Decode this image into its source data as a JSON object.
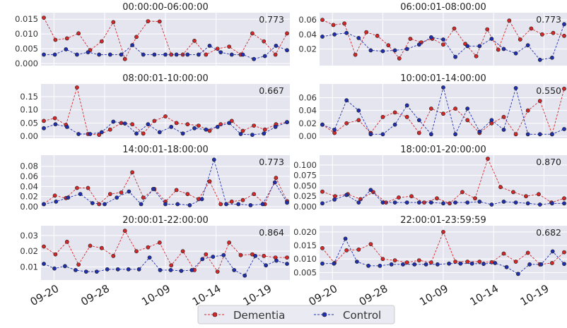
{
  "colors": {
    "dementia": "#d62728",
    "control": "#1f2fb0",
    "panel_bg": "#e5e5f0",
    "grid": "#ffffff"
  },
  "legend": {
    "dementia": "Dementia",
    "control": "Control"
  },
  "x_tick_labels": [
    "09-20",
    "09-28",
    "10-09",
    "10-14",
    "10-19"
  ],
  "chart_data": [
    {
      "type": "line",
      "title": "00:00:00-06:00:00",
      "annotation": "0.773",
      "ylim": [
        0,
        0.016
      ],
      "yticks": [
        "0.000",
        "0.005",
        "0.010",
        "0.015"
      ],
      "series": [
        {
          "name": "Dementia",
          "values": [
            0.0155,
            0.008,
            0.0085,
            0.0102,
            0.0045,
            0.0075,
            0.014,
            0.0015,
            0.009,
            0.0143,
            0.0142,
            0.003,
            0.003,
            0.0077,
            0.003,
            0.005,
            0.0057,
            0.003,
            0.0102,
            0.0075,
            0.003,
            0.0102
          ]
        },
        {
          "name": "Control",
          "values": [
            0.003,
            0.003,
            0.0048,
            0.003,
            0.0038,
            0.003,
            0.003,
            0.003,
            0.0062,
            0.003,
            0.003,
            0.003,
            0.003,
            0.003,
            0.003,
            0.006,
            0.0038,
            0.003,
            0.003,
            0.0015,
            0.0025,
            0.006,
            0.0045
          ]
        }
      ]
    },
    {
      "type": "line",
      "title": "06:00:01-08:00:00",
      "annotation": "0.773",
      "ylim": [
        0,
        0.065
      ],
      "yticks": [
        "0.02",
        "0.04",
        "0.06"
      ],
      "series": [
        {
          "name": "Dementia",
          "values": [
            0.06,
            0.053,
            0.055,
            0.012,
            0.043,
            0.038,
            0.025,
            0.007,
            0.034,
            0.029,
            0.034,
            0.026,
            0.048,
            0.027,
            0.01,
            0.047,
            0.019,
            0.059,
            0.033,
            0.048,
            0.04,
            0.042,
            0.038
          ]
        },
        {
          "name": "Control",
          "values": [
            0.037,
            0.04,
            0.042,
            0.035,
            0.018,
            0.017,
            0.018,
            0.02,
            0.026,
            0.036,
            0.033,
            0.009,
            0.024,
            0.024,
            0.034,
            0.02,
            0.014,
            0.025,
            0.005,
            0.008,
            0.054
          ]
        }
      ]
    },
    {
      "type": "line",
      "title": "08:00:01-10:00:00",
      "annotation": "0.667",
      "ylim": [
        0,
        0.185
      ],
      "yticks": [
        "0.00",
        "0.05",
        "0.10",
        "0.15"
      ],
      "series": [
        {
          "name": "Dementia",
          "values": [
            0.058,
            0.068,
            0.043,
            0.185,
            0.008,
            0.005,
            0.025,
            0.05,
            0.045,
            0.01,
            0.058,
            0.075,
            0.05,
            0.045,
            0.04,
            0.02,
            0.045,
            0.058,
            0.02,
            0.04,
            0.025,
            0.045,
            0.053
          ]
        },
        {
          "name": "Control",
          "values": [
            0.03,
            0.045,
            0.035,
            0.008,
            0.008,
            0.015,
            0.055,
            0.048,
            0.01,
            0.045,
            0.015,
            0.035,
            0.01,
            0.03,
            0.025,
            0.035,
            0.05,
            0.008,
            0.005,
            0.01,
            0.035,
            0.053
          ]
        }
      ]
    },
    {
      "type": "line",
      "title": "10:00:01-14:00:00",
      "annotation": "0.550",
      "ylim": [
        0,
        0.076
      ],
      "yticks": [
        "0.00",
        "0.02",
        "0.04",
        "0.06"
      ],
      "series": [
        {
          "name": "Dementia",
          "values": [
            0.018,
            0.005,
            0.02,
            0.025,
            0.005,
            0.03,
            0.037,
            0.03,
            0.005,
            0.043,
            0.035,
            0.043,
            0.025,
            0.005,
            0.02,
            0.03,
            0.003,
            0.04,
            0.055,
            0.003,
            0.074
          ]
        },
        {
          "name": "Control",
          "values": [
            0.018,
            0.01,
            0.056,
            0.04,
            0.003,
            0.003,
            0.018,
            0.048,
            0.025,
            0.003,
            0.076,
            0.003,
            0.043,
            0.007,
            0.025,
            0.01,
            0.075,
            0.003,
            0.003,
            0.003,
            0.011
          ]
        }
      ]
    },
    {
      "type": "line",
      "title": "14:00:01-18:00:00",
      "annotation": "0.773",
      "ylim": [
        0,
        0.095
      ],
      "yticks": [
        "0.00",
        "0.02",
        "0.04",
        "0.06",
        "0.08"
      ],
      "series": [
        {
          "name": "Dementia",
          "values": [
            0.005,
            0.022,
            0.017,
            0.037,
            0.037,
            0.005,
            0.025,
            0.028,
            0.068,
            0.018,
            0.035,
            0.01,
            0.033,
            0.025,
            0.015,
            0.05,
            0.005,
            0.01,
            0.013,
            0.025,
            0.005,
            0.057,
            0.011
          ]
        },
        {
          "name": "Control",
          "values": [
            0.005,
            0.01,
            0.018,
            0.025,
            0.007,
            0.005,
            0.018,
            0.03,
            0.005,
            0.035,
            0.005,
            0.005,
            0.003,
            0.015,
            0.093,
            0.005,
            0.005,
            0.003,
            0.005,
            0.048,
            0.008
          ]
        }
      ]
    },
    {
      "type": "line",
      "title": "18:00:01-20:00:00",
      "annotation": "0.870",
      "ylim": [
        0,
        0.115
      ],
      "yticks": [
        "0.000",
        "0.025",
        "0.050",
        "0.075",
        "0.100"
      ],
      "series": [
        {
          "name": "Dementia",
          "values": [
            0.036,
            0.025,
            0.03,
            0.018,
            0.035,
            0.01,
            0.022,
            0.025,
            0.01,
            0.02,
            0.008,
            0.035,
            0.02,
            0.115,
            0.047,
            0.035,
            0.025,
            0.03,
            0.01,
            0.02
          ]
        },
        {
          "name": "Control",
          "values": [
            0.008,
            0.017,
            0.028,
            0.01,
            0.04,
            0.01,
            0.01,
            0.01,
            0.01,
            0.01,
            0.008,
            0.01,
            0.01,
            0.012,
            0.005,
            0.012,
            0.01,
            0.008,
            0.005,
            0.008,
            0.008
          ]
        }
      ]
    },
    {
      "type": "line",
      "title": "20:00:01-22:00:00",
      "annotation": "0.864",
      "ylim": [
        0.003,
        0.034
      ],
      "yticks": [
        "0.01",
        "0.02",
        "0.03"
      ],
      "series": [
        {
          "name": "Dementia",
          "values": [
            0.023,
            0.018,
            0.026,
            0.0115,
            0.0235,
            0.022,
            0.017,
            0.033,
            0.02,
            0.0225,
            0.0255,
            0.011,
            0.02,
            0.008,
            0.018,
            0.007,
            0.0255,
            0.0175,
            0.018,
            0.017,
            0.016,
            0.016
          ]
        },
        {
          "name": "Control",
          "values": [
            0.012,
            0.009,
            0.0105,
            0.008,
            0.007,
            0.007,
            0.0085,
            0.0085,
            0.0085,
            0.0085,
            0.016,
            0.008,
            0.008,
            0.0075,
            0.008,
            0.015,
            0.0165,
            0.0175,
            0.008,
            0.0045,
            0.017,
            0.011,
            0.014,
            0.012
          ]
        }
      ]
    },
    {
      "type": "line",
      "title": "22:00:01-23:59:59",
      "annotation": "0.682",
      "ylim": [
        0.003,
        0.021
      ],
      "yticks": [
        "0.005",
        "0.010",
        "0.015",
        "0.020"
      ],
      "series": [
        {
          "name": "Dementia",
          "values": [
            0.014,
            0.0085,
            0.0132,
            0.0135,
            0.0155,
            0.01,
            0.0095,
            0.0087,
            0.0095,
            0.0087,
            0.02,
            0.009,
            0.009,
            0.009,
            0.0088,
            0.012,
            0.009,
            0.0123,
            0.008,
            0.0085,
            0.0125
          ]
        },
        {
          "name": "Control",
          "values": [
            0.0083,
            0.0083,
            0.0175,
            0.009,
            0.0075,
            0.0075,
            0.008,
            0.008,
            0.008,
            0.008,
            0.008,
            0.0083,
            0.0083,
            0.0083,
            0.0082,
            0.0085,
            0.007,
            0.0045,
            0.008,
            0.008,
            0.0128,
            0.0082
          ]
        }
      ]
    }
  ]
}
